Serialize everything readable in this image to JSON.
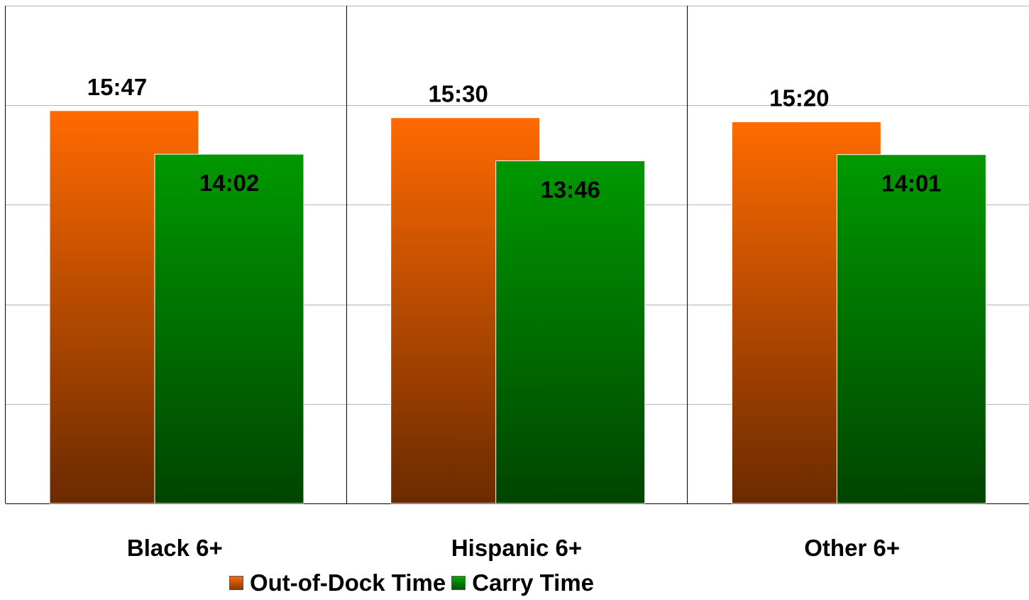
{
  "chart_data": {
    "type": "bar",
    "categories": [
      "Black 6+",
      "Hispanic 6+",
      "Other 6+"
    ],
    "series": [
      {
        "name": "Out-of-Dock Time",
        "values": [
          947,
          930,
          920
        ],
        "labels": [
          "15:47",
          "15:30",
          "15:20"
        ],
        "color_top": "#ff6a00",
        "color_bottom": "#6b2a00"
      },
      {
        "name": "Carry Time",
        "values": [
          842,
          826,
          841
        ],
        "labels": [
          "14:02",
          "13:46",
          "14:01"
        ],
        "color_top": "#009900",
        "color_bottom": "#004400"
      }
    ],
    "ylim": [
      0,
      1200
    ],
    "grid": true,
    "legend_position": "bottom"
  }
}
